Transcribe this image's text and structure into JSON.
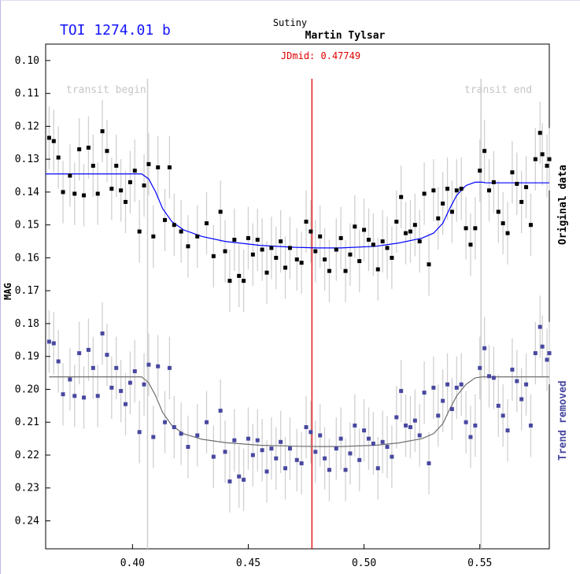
{
  "header": {
    "title": "TOI 1274.01 b",
    "site": "Sutiny",
    "observer": "Martin Tylsar",
    "jdmid": "JDmid: 0.47749"
  },
  "chart_data": {
    "type": "scatter",
    "ylabel": "MAG",
    "y_inverted": true,
    "xlim": [
      0.3625,
      0.58
    ],
    "ylim": [
      0.095,
      0.2485
    ],
    "x_ticks": [
      0.4,
      0.45,
      0.5,
      0.55
    ],
    "y_ticks": [
      0.1,
      0.11,
      0.12,
      0.13,
      0.14,
      0.15,
      0.16,
      0.17,
      0.18,
      0.19,
      0.2,
      0.21,
      0.22,
      0.23,
      0.24
    ],
    "transit_begin": {
      "label": "transit begin",
      "x": 0.4065
    },
    "transit_end": {
      "label": "transit end",
      "x": 0.5505
    },
    "jdmid_x": 0.47749,
    "series": [
      {
        "name": "Original data",
        "marker_color": "#000000",
        "model_color": "#0000ff",
        "points": [
          [
            0.364,
            0.1235
          ],
          [
            0.366,
            0.1245
          ],
          [
            0.368,
            0.1295
          ],
          [
            0.37,
            0.14
          ],
          [
            0.373,
            0.135
          ],
          [
            0.375,
            0.1405
          ],
          [
            0.377,
            0.127
          ],
          [
            0.379,
            0.141
          ],
          [
            0.381,
            0.1265
          ],
          [
            0.383,
            0.132
          ],
          [
            0.385,
            0.1405
          ],
          [
            0.387,
            0.1215
          ],
          [
            0.389,
            0.1275
          ],
          [
            0.391,
            0.139
          ],
          [
            0.393,
            0.132
          ],
          [
            0.395,
            0.1395
          ],
          [
            0.397,
            0.143
          ],
          [
            0.399,
            0.137
          ],
          [
            0.401,
            0.1335
          ],
          [
            0.403,
            0.152
          ],
          [
            0.405,
            0.138
          ],
          [
            0.407,
            0.1315
          ],
          [
            0.409,
            0.1535
          ],
          [
            0.411,
            0.1325
          ],
          [
            0.414,
            0.1485
          ],
          [
            0.416,
            0.1325
          ],
          [
            0.418,
            0.15
          ],
          [
            0.421,
            0.152
          ],
          [
            0.424,
            0.1565
          ],
          [
            0.428,
            0.1535
          ],
          [
            0.432,
            0.1495
          ],
          [
            0.435,
            0.1595
          ],
          [
            0.438,
            0.146
          ],
          [
            0.44,
            0.158
          ],
          [
            0.442,
            0.167
          ],
          [
            0.444,
            0.1545
          ],
          [
            0.446,
            0.1655
          ],
          [
            0.448,
            0.167
          ],
          [
            0.45,
            0.154
          ],
          [
            0.452,
            0.159
          ],
          [
            0.454,
            0.1545
          ],
          [
            0.456,
            0.1575
          ],
          [
            0.458,
            0.1645
          ],
          [
            0.46,
            0.157
          ],
          [
            0.462,
            0.16
          ],
          [
            0.464,
            0.155
          ],
          [
            0.466,
            0.163
          ],
          [
            0.468,
            0.157
          ],
          [
            0.471,
            0.1605
          ],
          [
            0.473,
            0.1615
          ],
          [
            0.475,
            0.149
          ],
          [
            0.477,
            0.152
          ],
          [
            0.479,
            0.158
          ],
          [
            0.481,
            0.1535
          ],
          [
            0.483,
            0.1605
          ],
          [
            0.485,
            0.164
          ],
          [
            0.488,
            0.1575
          ],
          [
            0.49,
            0.154
          ],
          [
            0.492,
            0.164
          ],
          [
            0.494,
            0.159
          ],
          [
            0.496,
            0.1505
          ],
          [
            0.498,
            0.161
          ],
          [
            0.5,
            0.1515
          ],
          [
            0.502,
            0.1545
          ],
          [
            0.504,
            0.156
          ],
          [
            0.506,
            0.1635
          ],
          [
            0.508,
            0.155
          ],
          [
            0.51,
            0.157
          ],
          [
            0.512,
            0.16
          ],
          [
            0.514,
            0.149
          ],
          [
            0.516,
            0.1415
          ],
          [
            0.518,
            0.1525
          ],
          [
            0.52,
            0.152
          ],
          [
            0.522,
            0.15
          ],
          [
            0.524,
            0.155
          ],
          [
            0.526,
            0.1405
          ],
          [
            0.528,
            0.162
          ],
          [
            0.53,
            0.1395
          ],
          [
            0.532,
            0.148
          ],
          [
            0.534,
            0.1435
          ],
          [
            0.536,
            0.139
          ],
          [
            0.538,
            0.146
          ],
          [
            0.54,
            0.1395
          ],
          [
            0.542,
            0.139
          ],
          [
            0.544,
            0.151
          ],
          [
            0.546,
            0.156
          ],
          [
            0.548,
            0.151
          ],
          [
            0.55,
            0.1335
          ],
          [
            0.552,
            0.1275
          ],
          [
            0.554,
            0.1395
          ],
          [
            0.556,
            0.137
          ],
          [
            0.558,
            0.146
          ],
          [
            0.56,
            0.1495
          ],
          [
            0.562,
            0.1525
          ],
          [
            0.564,
            0.134
          ],
          [
            0.566,
            0.1375
          ],
          [
            0.568,
            0.143
          ],
          [
            0.57,
            0.1385
          ],
          [
            0.572,
            0.15
          ],
          [
            0.574,
            0.13
          ],
          [
            0.576,
            0.122
          ],
          [
            0.577,
            0.1285
          ],
          [
            0.579,
            0.132
          ],
          [
            0.58,
            0.13
          ]
        ],
        "model": [
          [
            0.3625,
            0.1345
          ],
          [
            0.404,
            0.1345
          ],
          [
            0.407,
            0.136
          ],
          [
            0.41,
            0.14
          ],
          [
            0.413,
            0.145
          ],
          [
            0.417,
            0.149
          ],
          [
            0.422,
            0.1515
          ],
          [
            0.43,
            0.1535
          ],
          [
            0.44,
            0.155
          ],
          [
            0.455,
            0.1562
          ],
          [
            0.47,
            0.1568
          ],
          [
            0.48,
            0.157
          ],
          [
            0.49,
            0.157
          ],
          [
            0.505,
            0.1565
          ],
          [
            0.515,
            0.1555
          ],
          [
            0.525,
            0.154
          ],
          [
            0.53,
            0.1525
          ],
          [
            0.534,
            0.1495
          ],
          [
            0.537,
            0.145
          ],
          [
            0.54,
            0.141
          ],
          [
            0.544,
            0.138
          ],
          [
            0.548,
            0.137
          ],
          [
            0.551,
            0.137
          ],
          [
            0.5525,
            0.1372
          ],
          [
            0.58,
            0.1372
          ]
        ]
      },
      {
        "name": "Trend removed",
        "marker_color": "#4848a0",
        "model_color": "#6e6e6e",
        "points": [
          [
            0.364,
            0.1855
          ],
          [
            0.366,
            0.186
          ],
          [
            0.368,
            0.1915
          ],
          [
            0.37,
            0.2015
          ],
          [
            0.373,
            0.197
          ],
          [
            0.375,
            0.202
          ],
          [
            0.377,
            0.189
          ],
          [
            0.379,
            0.2025
          ],
          [
            0.381,
            0.188
          ],
          [
            0.383,
            0.1935
          ],
          [
            0.385,
            0.202
          ],
          [
            0.387,
            0.183
          ],
          [
            0.389,
            0.1895
          ],
          [
            0.391,
            0.1995
          ],
          [
            0.393,
            0.1935
          ],
          [
            0.395,
            0.2005
          ],
          [
            0.397,
            0.2045
          ],
          [
            0.399,
            0.198
          ],
          [
            0.401,
            0.1945
          ],
          [
            0.403,
            0.213
          ],
          [
            0.405,
            0.1985
          ],
          [
            0.407,
            0.1925
          ],
          [
            0.409,
            0.2145
          ],
          [
            0.411,
            0.193
          ],
          [
            0.414,
            0.21
          ],
          [
            0.416,
            0.1935
          ],
          [
            0.418,
            0.2115
          ],
          [
            0.421,
            0.2135
          ],
          [
            0.424,
            0.2175
          ],
          [
            0.428,
            0.214
          ],
          [
            0.432,
            0.21
          ],
          [
            0.435,
            0.2205
          ],
          [
            0.438,
            0.2065
          ],
          [
            0.44,
            0.219
          ],
          [
            0.442,
            0.228
          ],
          [
            0.444,
            0.2155
          ],
          [
            0.446,
            0.2265
          ],
          [
            0.448,
            0.2275
          ],
          [
            0.45,
            0.215
          ],
          [
            0.452,
            0.22
          ],
          [
            0.454,
            0.2155
          ],
          [
            0.456,
            0.2185
          ],
          [
            0.458,
            0.225
          ],
          [
            0.46,
            0.218
          ],
          [
            0.462,
            0.221
          ],
          [
            0.464,
            0.216
          ],
          [
            0.466,
            0.224
          ],
          [
            0.468,
            0.218
          ],
          [
            0.471,
            0.2215
          ],
          [
            0.473,
            0.2225
          ],
          [
            0.475,
            0.2115
          ],
          [
            0.477,
            0.213
          ],
          [
            0.479,
            0.219
          ],
          [
            0.481,
            0.214
          ],
          [
            0.483,
            0.221
          ],
          [
            0.485,
            0.2245
          ],
          [
            0.488,
            0.218
          ],
          [
            0.49,
            0.215
          ],
          [
            0.492,
            0.2245
          ],
          [
            0.494,
            0.2195
          ],
          [
            0.496,
            0.211
          ],
          [
            0.498,
            0.2215
          ],
          [
            0.5,
            0.2125
          ],
          [
            0.502,
            0.215
          ],
          [
            0.504,
            0.2165
          ],
          [
            0.506,
            0.224
          ],
          [
            0.508,
            0.216
          ],
          [
            0.51,
            0.2175
          ],
          [
            0.512,
            0.2205
          ],
          [
            0.514,
            0.2085
          ],
          [
            0.516,
            0.2005
          ],
          [
            0.518,
            0.211
          ],
          [
            0.52,
            0.2115
          ],
          [
            0.522,
            0.2095
          ],
          [
            0.524,
            0.214
          ],
          [
            0.526,
            0.201
          ],
          [
            0.528,
            0.2225
          ],
          [
            0.53,
            0.1995
          ],
          [
            0.532,
            0.208
          ],
          [
            0.534,
            0.2035
          ],
          [
            0.536,
            0.1985
          ],
          [
            0.538,
            0.206
          ],
          [
            0.54,
            0.1995
          ],
          [
            0.542,
            0.1985
          ],
          [
            0.544,
            0.21
          ],
          [
            0.546,
            0.2145
          ],
          [
            0.548,
            0.211
          ],
          [
            0.55,
            0.1935
          ],
          [
            0.552,
            0.1875
          ],
          [
            0.554,
            0.196
          ],
          [
            0.556,
            0.1965
          ],
          [
            0.558,
            0.205
          ],
          [
            0.56,
            0.208
          ],
          [
            0.562,
            0.2125
          ],
          [
            0.564,
            0.194
          ],
          [
            0.566,
            0.1975
          ],
          [
            0.568,
            0.203
          ],
          [
            0.57,
            0.1985
          ],
          [
            0.572,
            0.211
          ],
          [
            0.574,
            0.189
          ],
          [
            0.576,
            0.181
          ],
          [
            0.577,
            0.187
          ],
          [
            0.579,
            0.191
          ],
          [
            0.58,
            0.189
          ]
        ],
        "model": [
          [
            0.364,
            0.1962
          ],
          [
            0.404,
            0.1962
          ],
          [
            0.407,
            0.198
          ],
          [
            0.41,
            0.202
          ],
          [
            0.413,
            0.207
          ],
          [
            0.417,
            0.211
          ],
          [
            0.422,
            0.2135
          ],
          [
            0.43,
            0.2152
          ],
          [
            0.44,
            0.2162
          ],
          [
            0.455,
            0.217
          ],
          [
            0.47,
            0.2173
          ],
          [
            0.48,
            0.2174
          ],
          [
            0.49,
            0.2174
          ],
          [
            0.505,
            0.217
          ],
          [
            0.515,
            0.2163
          ],
          [
            0.525,
            0.215
          ],
          [
            0.53,
            0.2135
          ],
          [
            0.534,
            0.2105
          ],
          [
            0.537,
            0.206
          ],
          [
            0.54,
            0.202
          ],
          [
            0.544,
            0.1985
          ],
          [
            0.548,
            0.1965
          ],
          [
            0.551,
            0.1962
          ],
          [
            0.58,
            0.1962
          ]
        ]
      }
    ]
  }
}
